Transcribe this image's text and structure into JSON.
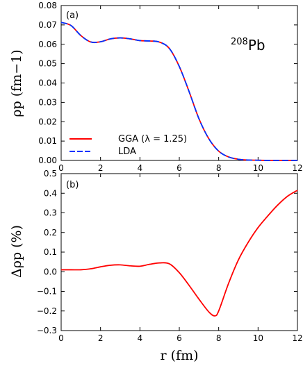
{
  "chart_data": [
    {
      "type": "line",
      "panel_label": "(a)",
      "annotation": {
        "mass": "208",
        "symbol": "Pb"
      },
      "ylabel": "ρp (fm−1)",
      "ylim": [
        0,
        0.08
      ],
      "xlim": [
        0,
        12
      ],
      "x_ticks": [
        "0",
        "2",
        "4",
        "6",
        "8",
        "10",
        "12"
      ],
      "y_ticks": [
        "0.00",
        "0.01",
        "0.02",
        "0.03",
        "0.04",
        "0.05",
        "0.06",
        "0.07",
        "0.08"
      ],
      "legend_placement": "lower-left",
      "series": [
        {
          "name": "GGA (λ = 1.25)",
          "color": "#ff0000",
          "style": "solid",
          "x": [
            0,
            0.5,
            1,
            1.5,
            2,
            2.5,
            3,
            3.5,
            4,
            4.5,
            5,
            5.5,
            6,
            6.5,
            7,
            7.5,
            8,
            8.5,
            9,
            9.5,
            10,
            10.5,
            11,
            11.5,
            12
          ],
          "values": [
            0.0713,
            0.0697,
            0.0645,
            0.0612,
            0.0613,
            0.0628,
            0.0633,
            0.0628,
            0.0619,
            0.0617,
            0.0611,
            0.0578,
            0.0485,
            0.0355,
            0.0215,
            0.0112,
            0.0048,
            0.0018,
            0.0006,
            0.0002,
            0.0001,
            0.0,
            0.0,
            0.0,
            0.0
          ]
        },
        {
          "name": "LDA",
          "color": "#0033ff",
          "style": "dashed",
          "x": [
            0,
            0.5,
            1,
            1.5,
            2,
            2.5,
            3,
            3.5,
            4,
            4.5,
            5,
            5.5,
            6,
            6.5,
            7,
            7.5,
            8,
            8.5,
            9,
            9.5,
            10,
            10.5,
            11,
            11.5,
            12
          ],
          "values": [
            0.0713,
            0.0697,
            0.0645,
            0.0612,
            0.0613,
            0.0628,
            0.0633,
            0.0628,
            0.0619,
            0.0617,
            0.0611,
            0.0578,
            0.0485,
            0.0355,
            0.0215,
            0.0112,
            0.0048,
            0.0018,
            0.0006,
            0.0002,
            0.0001,
            0.0,
            0.0,
            0.0,
            0.0
          ]
        }
      ]
    },
    {
      "type": "line",
      "panel_label": "(b)",
      "ylabel": "Δρp (%)",
      "xlabel": "r (fm)",
      "ylim": [
        -0.3,
        0.5
      ],
      "xlim": [
        0,
        12
      ],
      "x_ticks": [
        "0",
        "2",
        "4",
        "6",
        "8",
        "10",
        "12"
      ],
      "y_ticks": [
        "−0.3",
        "−0.2",
        "−0.1",
        "0.0",
        "0.1",
        "0.2",
        "0.3",
        "0.4",
        "0.5"
      ],
      "series": [
        {
          "color": "#ff0000",
          "style": "solid",
          "x": [
            0,
            0.5,
            1,
            1.5,
            2,
            2.5,
            3,
            3.5,
            4,
            4.5,
            5,
            5.5,
            6,
            6.5,
            7,
            7.5,
            7.8,
            8,
            8.5,
            9,
            9.5,
            10,
            10.5,
            11,
            11.5,
            12
          ],
          "values": [
            0.01,
            0.01,
            0.01,
            0.015,
            0.025,
            0.033,
            0.035,
            0.03,
            0.028,
            0.038,
            0.045,
            0.04,
            -0.005,
            -0.07,
            -0.14,
            -0.205,
            -0.225,
            -0.2,
            -0.06,
            0.06,
            0.15,
            0.225,
            0.285,
            0.34,
            0.385,
            0.415
          ]
        }
      ]
    }
  ]
}
